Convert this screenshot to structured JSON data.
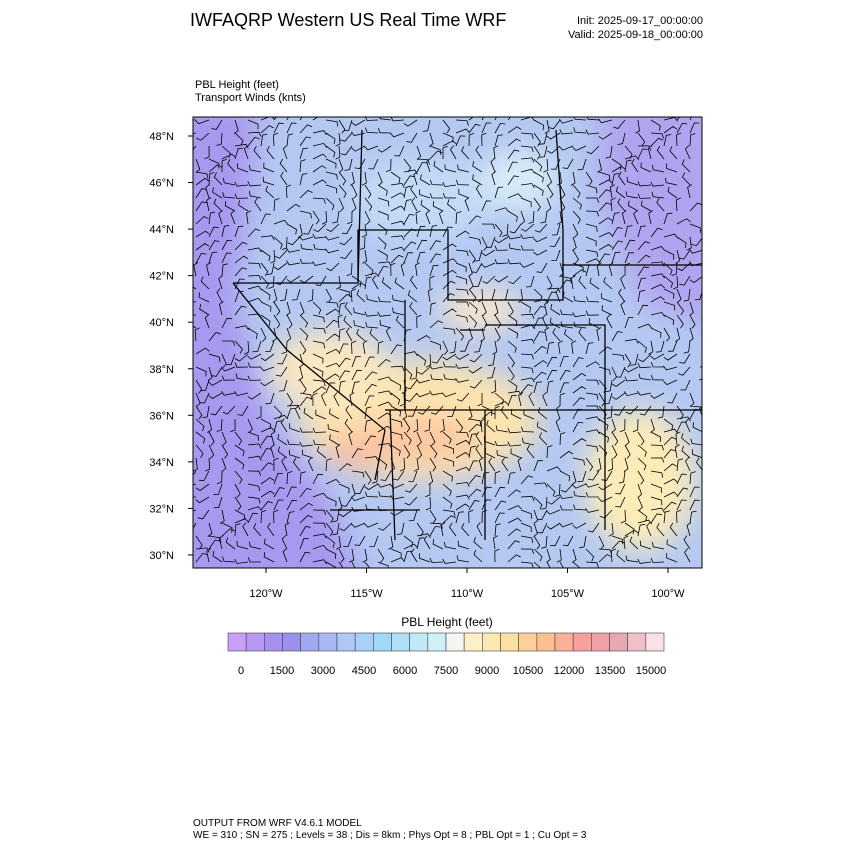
{
  "header": {
    "title": "IWFAQRP Western US Real Time WRF",
    "init": "Init: 2025-09-17_00:00:00",
    "valid": "Valid: 2025-09-18_00:00:00"
  },
  "fields": {
    "primary": "PBL Height   (feet)",
    "secondary": "Transport Winds   (knts)"
  },
  "map": {
    "lat_labels": [
      "48°N",
      "46°N",
      "44°N",
      "42°N",
      "40°N",
      "38°N",
      "36°N",
      "34°N",
      "32°N",
      "30°N"
    ],
    "lon_labels": [
      "120°W",
      "115°W",
      "110°W",
      "105°W",
      "100°W"
    ]
  },
  "colorbar": {
    "title": "PBL Height  (feet)",
    "labels": [
      "0",
      "1500",
      "3000",
      "4500",
      "6000",
      "7500",
      "9000",
      "10500",
      "12000",
      "13500",
      "15000"
    ],
    "colors": [
      "#c8a0f8",
      "#b898f4",
      "#a890f0",
      "#9c90ec",
      "#a0a8f0",
      "#a8b8f4",
      "#b0c8f8",
      "#a8d0f8",
      "#a0d8f8",
      "#b0e0f8",
      "#c0e8f8",
      "#d0f0f8",
      "#f4f4f0",
      "#fcf0c8",
      "#fce8b0",
      "#fce0a0",
      "#fcd098",
      "#fcc090",
      "#fcb098",
      "#f8a0a0",
      "#f0a0a8",
      "#e8a8b0",
      "#f0c0c8",
      "#fce0e8"
    ]
  },
  "footer": {
    "line1": "OUTPUT FROM WRF V4.6.1 MODEL",
    "line2": "WE = 310 ; SN = 275 ; Levels = 38 ; Dis = 8km ; Phys Opt = 8 ; PBL Opt = 1 ; Cu Opt = 3"
  }
}
